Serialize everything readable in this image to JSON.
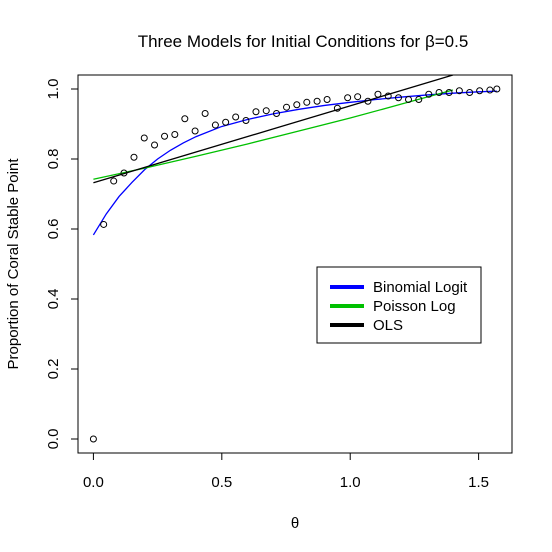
{
  "chart_data": {
    "type": "scatter",
    "title": "Three Models for Initial Conditions for β=0.5",
    "xlabel": "θ",
    "ylabel": "Proportion of Coral Stable Point",
    "xlim": [
      -0.06,
      1.63
    ],
    "ylim": [
      -0.04,
      1.04
    ],
    "xticks": [
      0.0,
      0.5,
      1.0,
      1.5
    ],
    "xtick_labels": [
      "0.0",
      "0.5",
      "1.0",
      "1.5"
    ],
    "yticks": [
      0.0,
      0.2,
      0.4,
      0.6,
      0.8,
      1.0
    ],
    "ytick_labels": [
      "0.0",
      "0.2",
      "0.4",
      "0.6",
      "0.8",
      "1.0"
    ],
    "grid": false,
    "legend_placement": "center-right",
    "legend": [
      {
        "label": "Binomial Logit",
        "color": "#0000ff"
      },
      {
        "label": "Poisson Log",
        "color": "#00c000"
      },
      {
        "label": "OLS",
        "color": "#000000"
      }
    ],
    "points": {
      "x": [
        0.0,
        0.04,
        0.079,
        0.119,
        0.158,
        0.198,
        0.238,
        0.277,
        0.317,
        0.356,
        0.396,
        0.435,
        0.475,
        0.515,
        0.554,
        0.594,
        0.633,
        0.673,
        0.713,
        0.752,
        0.792,
        0.831,
        0.871,
        0.91,
        0.95,
        0.99,
        1.029,
        1.069,
        1.108,
        1.148,
        1.188,
        1.227,
        1.267,
        1.306,
        1.346,
        1.385,
        1.425,
        1.465,
        1.504,
        1.544,
        1.571
      ],
      "y": [
        0.0,
        0.613,
        0.737,
        0.76,
        0.805,
        0.86,
        0.84,
        0.865,
        0.87,
        0.915,
        0.88,
        0.93,
        0.897,
        0.905,
        0.92,
        0.91,
        0.935,
        0.938,
        0.93,
        0.948,
        0.955,
        0.962,
        0.965,
        0.97,
        0.945,
        0.975,
        0.978,
        0.965,
        0.985,
        0.98,
        0.975,
        0.97,
        0.97,
        0.985,
        0.99,
        0.99,
        0.995,
        0.99,
        0.995,
        0.997,
        1.0
      ]
    },
    "series": [
      {
        "name": "Binomial Logit",
        "color": "#0000ff",
        "x": [
          0.0,
          0.05,
          0.1,
          0.15,
          0.2,
          0.25,
          0.3,
          0.35,
          0.4,
          0.5,
          0.6,
          0.7,
          0.8,
          0.9,
          1.0,
          1.1,
          1.2,
          1.3,
          1.4,
          1.5,
          1.571
        ],
        "y": [
          0.583,
          0.643,
          0.693,
          0.733,
          0.77,
          0.8,
          0.825,
          0.846,
          0.864,
          0.893,
          0.913,
          0.929,
          0.942,
          0.953,
          0.962,
          0.97,
          0.977,
          0.983,
          0.988,
          0.992,
          0.994
        ]
      },
      {
        "name": "Poisson Log",
        "color": "#00c000",
        "x": [
          0.0,
          0.2,
          0.4,
          0.6,
          0.8,
          1.0,
          1.2,
          1.4
        ],
        "y": [
          0.742,
          0.774,
          0.808,
          0.843,
          0.88,
          0.917,
          0.957,
          0.997
        ]
      },
      {
        "name": "OLS",
        "color": "#000000",
        "x": [
          0.0,
          1.4
        ],
        "y": [
          0.732,
          1.04
        ]
      }
    ]
  }
}
